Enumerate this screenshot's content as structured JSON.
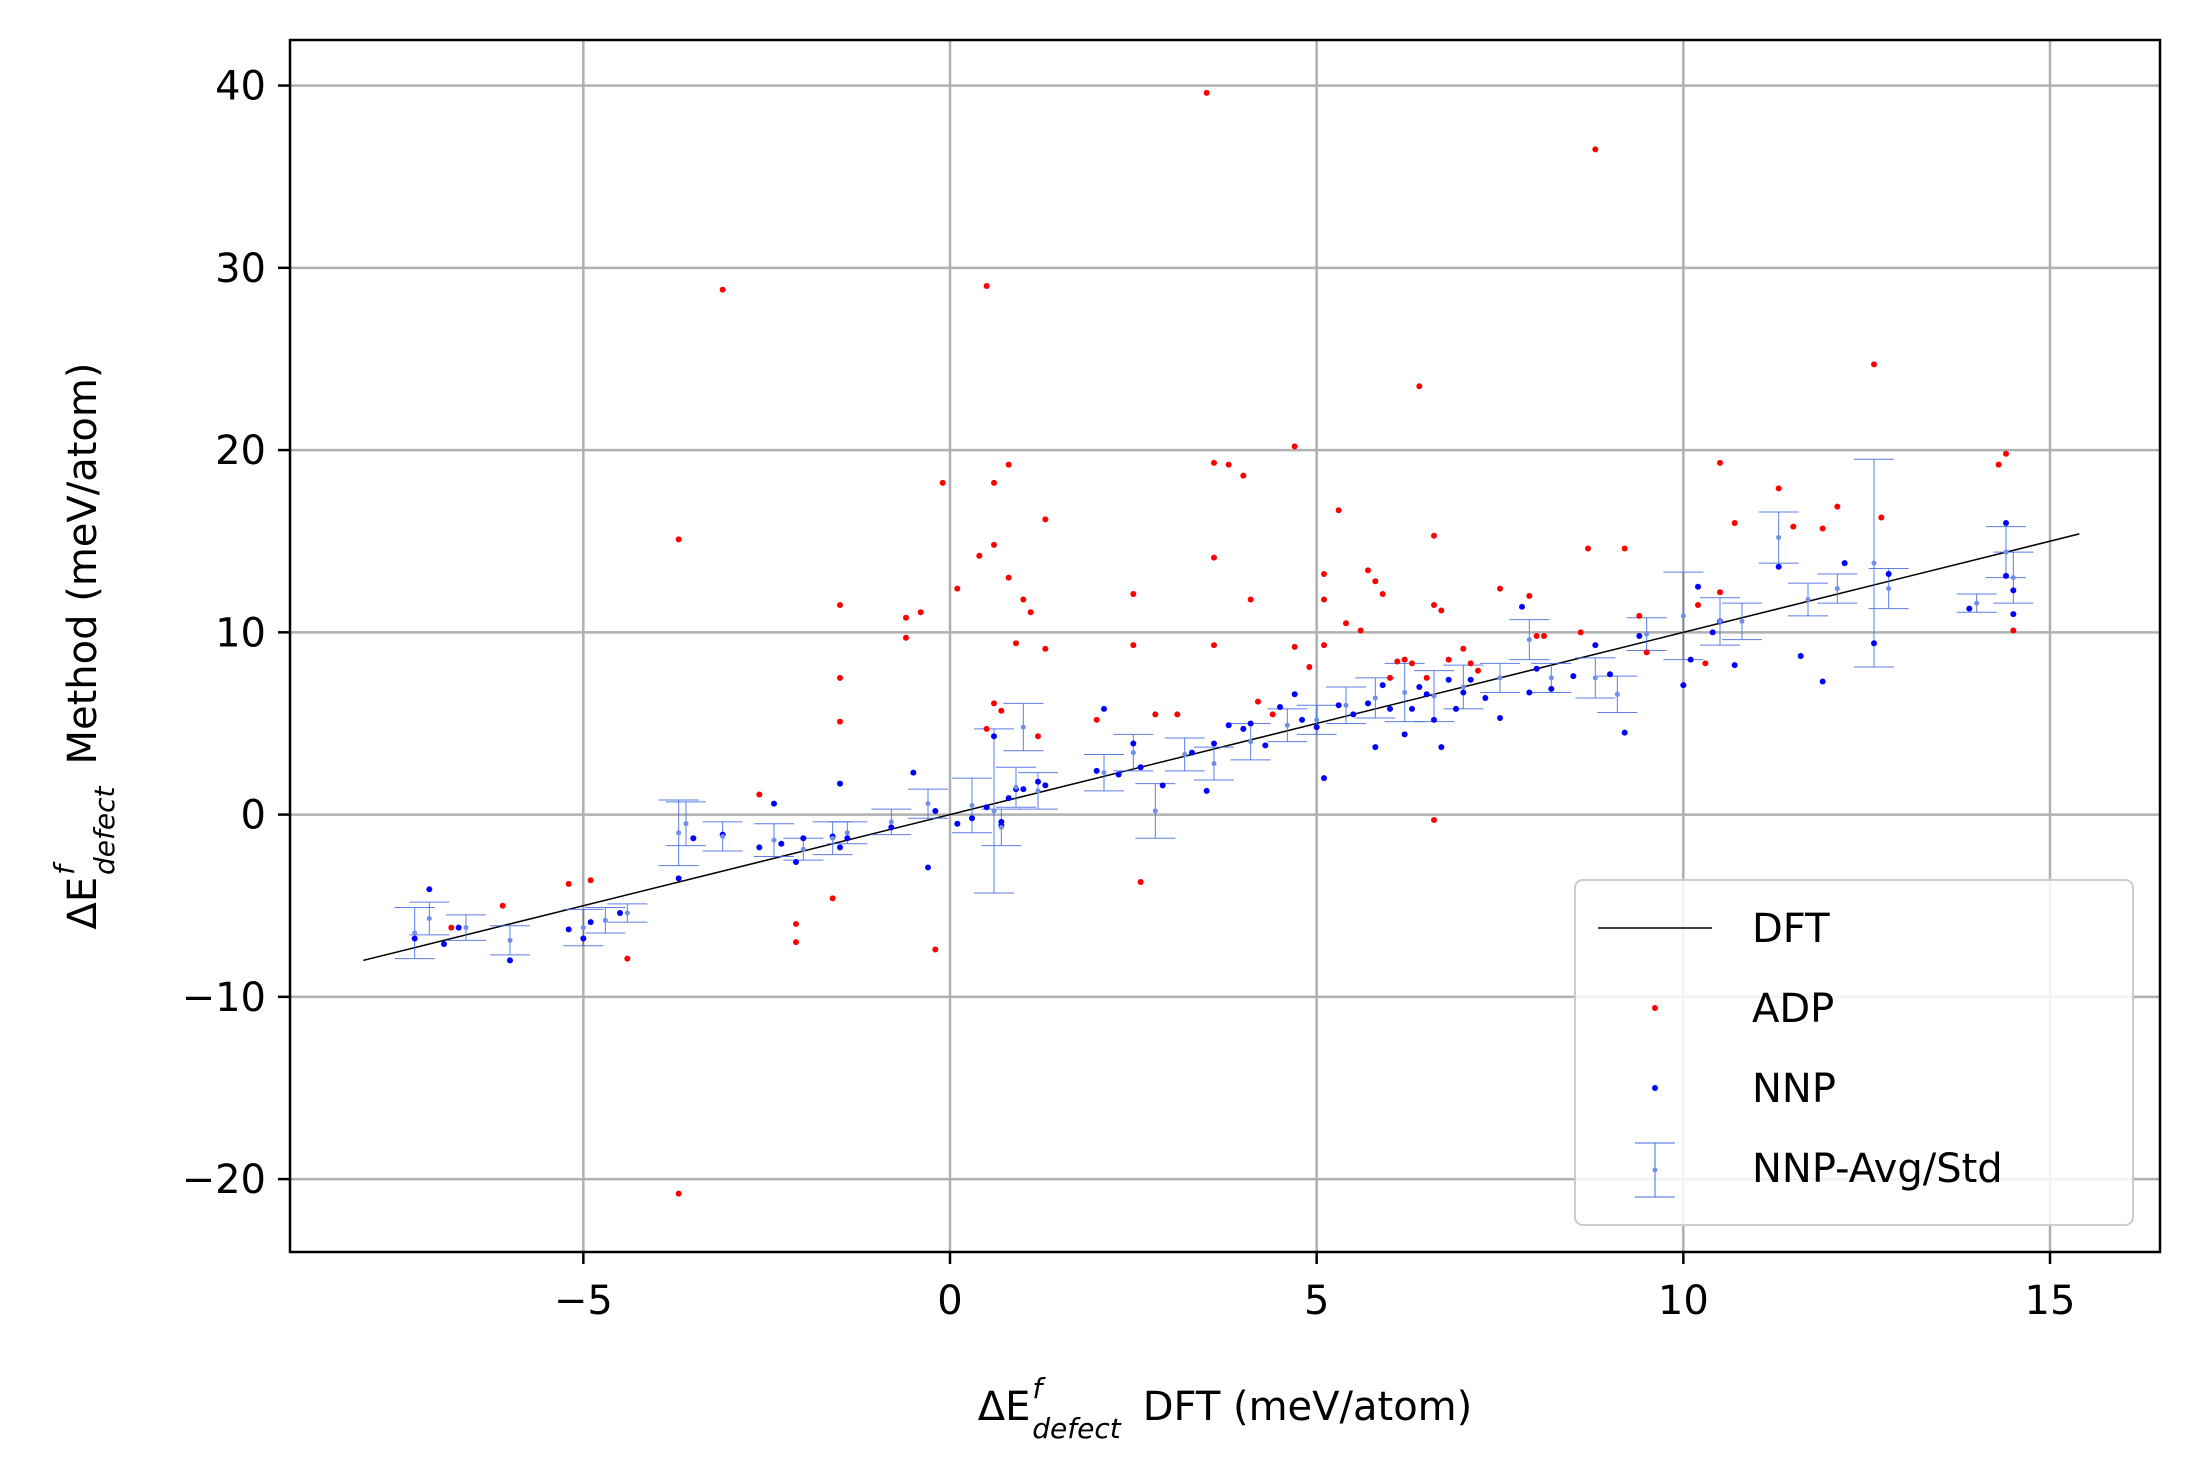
{
  "chart_data": {
    "type": "scatter",
    "xlabel": {
      "prefix": "ΔE",
      "sup": "f",
      "sub": "defect",
      "rest": "DFT (meV/atom)"
    },
    "ylabel": {
      "prefix": "ΔE",
      "sup": "f",
      "sub": "defect",
      "rest": "Method (meV/atom)"
    },
    "xlim": [
      -9,
      16.5
    ],
    "ylim": [
      -24,
      42.5
    ],
    "xticks": [
      -5,
      0,
      5,
      10,
      15
    ],
    "yticks": [
      -20,
      -10,
      0,
      10,
      20,
      30,
      40
    ],
    "xtick_labels": [
      "−5",
      "0",
      "5",
      "10",
      "15"
    ],
    "ytick_labels": [
      "−20",
      "−10",
      "0",
      "10",
      "20",
      "30",
      "40"
    ],
    "grid": true,
    "legend_position": "lower-right",
    "legend": [
      "DFT",
      "ADP",
      "NNP",
      "NNP-Avg/Std"
    ],
    "colors": {
      "DFT": "#000000",
      "ADP": "#ff0000",
      "NNP": "#0000ff",
      "NNP-Avg/Std": "#4169e1",
      "grid": "#b0b0b0"
    },
    "series": [
      {
        "name": "DFT",
        "kind": "line",
        "x": [
          -8,
          15.4
        ],
        "y": [
          -8,
          15.4
        ]
      },
      {
        "name": "ADP",
        "kind": "points",
        "x": [
          -6.8,
          -6.1,
          -5.2,
          -4.9,
          -4.4,
          -3.7,
          -3.7,
          -3.1,
          -2.6,
          -2.1,
          -2.1,
          -1.6,
          -1.5,
          -1.5,
          -1.5,
          -0.6,
          -0.6,
          -0.4,
          -0.2,
          -0.1,
          0.1,
          0.4,
          0.5,
          0.5,
          0.6,
          0.6,
          0.6,
          0.7,
          0.8,
          0.8,
          0.9,
          1.0,
          1.1,
          1.2,
          1.3,
          1.3,
          2.0,
          2.5,
          2.5,
          2.6,
          2.8,
          3.1,
          3.5,
          3.6,
          3.6,
          3.6,
          3.8,
          4.0,
          4.1,
          4.2,
          4.4,
          4.7,
          4.7,
          4.9,
          5.1,
          5.1,
          5.1,
          5.3,
          5.4,
          5.6,
          5.7,
          5.8,
          5.9,
          6.0,
          6.1,
          6.2,
          6.3,
          6.4,
          6.5,
          6.6,
          6.6,
          6.6,
          6.7,
          6.8,
          7.0,
          7.1,
          7.2,
          7.5,
          7.9,
          8.0,
          8.1,
          8.6,
          8.7,
          8.8,
          9.2,
          9.4,
          9.5,
          10.2,
          10.3,
          10.5,
          10.5,
          10.7,
          11.3,
          11.5,
          11.9,
          12.1,
          12.6,
          12.7,
          14.3,
          14.4,
          14.5
        ],
        "y": [
          -6.2,
          -5.0,
          -3.8,
          -3.6,
          -7.9,
          15.1,
          -20.8,
          28.8,
          1.1,
          -6.0,
          -7.0,
          -4.6,
          11.5,
          5.1,
          7.5,
          10.8,
          9.7,
          11.1,
          -7.4,
          18.2,
          12.4,
          14.2,
          29.0,
          4.7,
          14.8,
          18.2,
          6.1,
          5.7,
          19.2,
          13.0,
          9.4,
          11.8,
          11.1,
          4.3,
          16.2,
          9.1,
          5.2,
          9.3,
          12.1,
          -3.7,
          5.5,
          5.5,
          39.6,
          19.3,
          14.1,
          9.3,
          19.2,
          18.6,
          11.8,
          6.2,
          5.5,
          20.2,
          9.2,
          8.1,
          13.2,
          11.8,
          9.3,
          16.7,
          10.5,
          10.1,
          13.4,
          12.8,
          12.1,
          7.5,
          8.4,
          8.5,
          8.3,
          23.5,
          7.5,
          15.3,
          11.5,
          -0.3,
          11.2,
          8.5,
          9.1,
          8.3,
          7.9,
          12.4,
          12.0,
          9.8,
          9.8,
          10.0,
          14.6,
          36.5,
          14.6,
          10.9,
          8.9,
          11.5,
          8.3,
          12.2,
          19.3,
          16.0,
          17.9,
          15.8,
          15.7,
          16.9,
          24.7,
          16.3,
          19.2,
          19.8,
          10.1
        ]
      },
      {
        "name": "NNP",
        "kind": "points",
        "x": [
          -7.3,
          -7.1,
          -6.9,
          -6.7,
          -6.0,
          -5.2,
          -5.0,
          -4.9,
          -4.5,
          -3.7,
          -3.5,
          -3.1,
          -2.6,
          -2.4,
          -2.3,
          -2.1,
          -2.0,
          -1.6,
          -1.5,
          -1.5,
          -1.4,
          -0.8,
          -0.5,
          -0.3,
          -0.2,
          0.1,
          0.3,
          0.5,
          0.6,
          0.7,
          0.7,
          0.8,
          0.9,
          1.0,
          1.2,
          1.3,
          2.0,
          2.1,
          2.3,
          2.5,
          2.6,
          2.9,
          3.3,
          3.5,
          3.6,
          3.8,
          4.0,
          4.1,
          4.3,
          4.5,
          4.7,
          4.8,
          5.0,
          5.1,
          5.3,
          5.5,
          5.7,
          5.8,
          5.9,
          6.0,
          6.2,
          6.3,
          6.4,
          6.5,
          6.6,
          6.7,
          6.8,
          6.9,
          7.0,
          7.1,
          7.3,
          7.5,
          7.8,
          7.9,
          8.0,
          8.2,
          8.5,
          8.8,
          9.0,
          9.2,
          9.4,
          10.0,
          10.1,
          10.2,
          10.4,
          10.5,
          10.7,
          11.3,
          11.6,
          11.9,
          12.2,
          12.6,
          12.8,
          13.9,
          14.4,
          14.4,
          14.5,
          14.5
        ],
        "y": [
          -6.8,
          -4.1,
          -7.1,
          -6.2,
          -8.0,
          -6.3,
          -6.8,
          -5.9,
          -5.4,
          -3.5,
          -1.3,
          -1.1,
          -1.8,
          0.6,
          -1.6,
          -2.6,
          -1.3,
          -1.2,
          1.7,
          -1.8,
          -1.3,
          -0.7,
          2.3,
          -2.9,
          0.2,
          -0.5,
          -0.2,
          0.4,
          4.3,
          -0.4,
          -0.6,
          0.9,
          1.4,
          1.4,
          1.8,
          1.6,
          2.4,
          5.8,
          2.2,
          3.9,
          2.6,
          1.6,
          3.4,
          1.3,
          3.9,
          4.9,
          4.7,
          5.0,
          3.8,
          5.9,
          6.6,
          5.2,
          4.8,
          2.0,
          6.0,
          5.5,
          6.1,
          3.7,
          7.1,
          5.8,
          4.4,
          5.8,
          7.0,
          6.6,
          5.2,
          3.7,
          7.4,
          5.8,
          6.7,
          7.4,
          6.4,
          5.3,
          11.4,
          6.7,
          8.0,
          6.9,
          7.6,
          9.3,
          7.7,
          4.5,
          9.8,
          7.1,
          8.5,
          12.5,
          10.0,
          10.6,
          8.2,
          13.6,
          8.7,
          7.3,
          13.8,
          9.4,
          13.2,
          11.3,
          16.0,
          13.1,
          12.3,
          11.0
        ]
      },
      {
        "name": "NNP-Avg/Std",
        "kind": "errorbar",
        "x": [
          -7.3,
          -7.1,
          -6.6,
          -6.0,
          -5.0,
          -4.7,
          -4.4,
          -3.7,
          -3.6,
          -3.1,
          -2.4,
          -2.0,
          -1.6,
          -1.4,
          -0.8,
          -0.3,
          0.3,
          0.6,
          0.7,
          0.9,
          1.0,
          1.2,
          2.1,
          2.5,
          2.8,
          3.2,
          3.6,
          4.1,
          4.6,
          5.0,
          5.4,
          5.8,
          6.2,
          6.6,
          7.0,
          7.5,
          7.9,
          8.2,
          8.8,
          9.1,
          9.5,
          10.0,
          10.5,
          10.8,
          11.3,
          11.7,
          12.1,
          12.6,
          12.8,
          14.0,
          14.4,
          14.5
        ],
        "y": [
          -6.5,
          -5.7,
          -6.2,
          -6.9,
          -6.2,
          -5.8,
          -5.4,
          -1.0,
          -0.5,
          -1.2,
          -1.4,
          -1.9,
          -1.3,
          -1.0,
          -0.4,
          0.6,
          0.5,
          0.2,
          -0.7,
          1.5,
          4.8,
          1.3,
          2.3,
          3.4,
          0.2,
          3.3,
          2.8,
          4.0,
          4.9,
          5.2,
          6.0,
          6.4,
          6.7,
          6.5,
          7.0,
          7.5,
          9.6,
          7.5,
          7.5,
          6.6,
          9.9,
          10.9,
          10.6,
          10.6,
          15.2,
          11.8,
          12.4,
          13.8,
          12.4,
          11.6,
          14.4,
          13.0
        ],
        "err": [
          1.4,
          0.9,
          0.7,
          0.8,
          1.0,
          0.7,
          0.5,
          1.8,
          1.2,
          0.8,
          0.9,
          0.6,
          0.9,
          0.6,
          0.7,
          0.8,
          1.5,
          4.5,
          1.0,
          1.1,
          1.3,
          1.0,
          1.0,
          1.0,
          1.5,
          0.9,
          0.9,
          1.0,
          0.9,
          0.8,
          1.0,
          1.1,
          1.6,
          1.4,
          1.2,
          0.8,
          1.1,
          0.8,
          1.1,
          1.0,
          0.9,
          2.4,
          1.3,
          1.0,
          1.4,
          0.9,
          0.8,
          5.7,
          1.1,
          0.5,
          1.4,
          1.4
        ]
      }
    ]
  }
}
